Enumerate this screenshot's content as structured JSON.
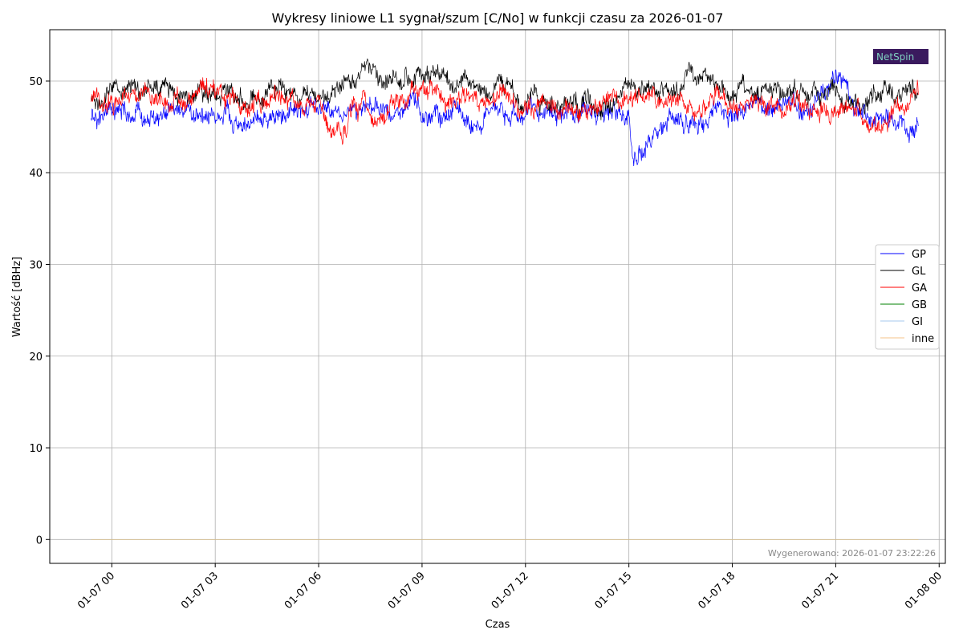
{
  "chart_data": {
    "type": "line",
    "title": "Wykresy liniowe L1 sygnał/szum [C/No] w funkcji czasu za 2026-01-07",
    "xlabel": "Czas",
    "ylabel": "Wartość [dBHz]",
    "x_range": [
      "2026-01-06 22:10",
      "2026-01-08 00:40"
    ],
    "xlim": [
      -1.8,
      24.18
    ],
    "ylim": [
      -2.6,
      55.6
    ],
    "x_ticks": [
      {
        "value": 0,
        "label": "01-07 00"
      },
      {
        "value": 3,
        "label": "01-07 03"
      },
      {
        "value": 6,
        "label": "01-07 06"
      },
      {
        "value": 9,
        "label": "01-07 09"
      },
      {
        "value": 12,
        "label": "01-07 12"
      },
      {
        "value": 15,
        "label": "01-07 15"
      },
      {
        "value": 18,
        "label": "01-07 18"
      },
      {
        "value": 21,
        "label": "01-07 21"
      },
      {
        "value": 24,
        "label": "01-08 00"
      }
    ],
    "y_ticks": [
      0,
      10,
      20,
      30,
      40,
      50
    ],
    "grid": true,
    "legend_position": "center-right",
    "series": [
      {
        "name": "GP",
        "color": "#0000ff",
        "x": [
          -0.6,
          0,
          1,
          2,
          3,
          3.8,
          5,
          6,
          6.7,
          7,
          8,
          8.5,
          9,
          10,
          11,
          12,
          13,
          14,
          15,
          15.1,
          16,
          17,
          18,
          19,
          20,
          21,
          21.5,
          22,
          22.5,
          23,
          23.4
        ],
        "y": [
          45.5,
          46.0,
          45.8,
          46.3,
          46.5,
          44.8,
          46.2,
          46.8,
          46.5,
          46.8,
          46.5,
          47.5,
          46.2,
          46.3,
          45.6,
          46.5,
          46.6,
          46.8,
          46.6,
          41.3,
          45.6,
          45.0,
          46.5,
          46.8,
          46.8,
          49.5,
          47.8,
          47.0,
          45.8,
          44.2,
          45.2
        ]
      },
      {
        "name": "GL",
        "color": "#000000",
        "x": [
          -0.6,
          0,
          0.5,
          1,
          2,
          2.5,
          3,
          3.5,
          4,
          5,
          6,
          6.7,
          7,
          7.3,
          8,
          9,
          10,
          11,
          12,
          13,
          14,
          15,
          16,
          16.8,
          17,
          18,
          19,
          20,
          21,
          21.5,
          22,
          22.5,
          23,
          23.4
        ],
        "y": [
          47.8,
          48.2,
          49.5,
          48.8,
          49.0,
          49.5,
          49.5,
          48.8,
          48.8,
          48.5,
          48.0,
          49.5,
          49.8,
          52.0,
          50.5,
          50.5,
          49.2,
          49.8,
          48.2,
          47.5,
          46.8,
          49.5,
          49.0,
          50.2,
          49.0,
          49.0,
          49.2,
          48.5,
          48.5,
          47.8,
          47.5,
          48.2,
          49.5,
          49.0
        ]
      },
      {
        "name": "GA",
        "color": "#ff0000",
        "x": [
          -0.6,
          0,
          0.5,
          1,
          2,
          3,
          4,
          5,
          6,
          6.7,
          7,
          8,
          8.5,
          9,
          10,
          11,
          12,
          13,
          14,
          15,
          15.5,
          16,
          17,
          18,
          19,
          20,
          21,
          21.5,
          22,
          22.5,
          23,
          23.4
        ],
        "y": [
          47.8,
          47.5,
          49.0,
          48.5,
          48.0,
          49.2,
          47.6,
          47.8,
          46.8,
          42.3,
          47.0,
          46.5,
          48.5,
          49.0,
          47.8,
          48.5,
          47.5,
          47.2,
          47.5,
          48.3,
          48.8,
          47.5,
          47.5,
          48.2,
          47.5,
          46.8,
          46.5,
          46.2,
          46.0,
          45.5,
          46.2,
          47.8
        ]
      },
      {
        "name": "GB",
        "color": "#008000",
        "x": [
          -0.6,
          23.4
        ],
        "y": [
          0,
          0
        ]
      },
      {
        "name": "GI",
        "color": "#a6c8ec",
        "x": [
          -0.6,
          23.4
        ],
        "y": [
          0,
          0
        ]
      },
      {
        "name": "inne",
        "color": "#f5c38a",
        "x": [
          -0.6,
          23.4
        ],
        "y": [
          0,
          0
        ]
      }
    ]
  },
  "footer": {
    "generated_label": "Wygenerowano: 2026-01-07 23:22:26"
  },
  "logo": {
    "text": "NetSpin"
  }
}
